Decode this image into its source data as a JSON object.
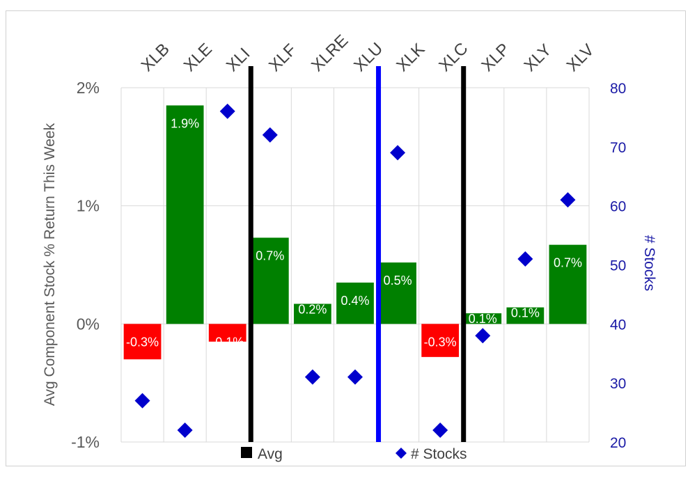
{
  "chart_data": {
    "type": "bar",
    "categories": [
      "XLB",
      "XLE",
      "XLI",
      "XLF",
      "XLRE",
      "XLU",
      "XLK",
      "XLC",
      "XLP",
      "XLY",
      "XLV"
    ],
    "series": [
      {
        "name": "Avg Component Stock % Return This Week",
        "axis": "left",
        "values": [
          -0.3,
          1.85,
          -0.15,
          0.73,
          0.17,
          0.35,
          0.52,
          -0.28,
          0.09,
          0.14,
          0.67
        ],
        "labels": [
          "-0.3%",
          "1.9%",
          "-0.1%",
          "0.7%",
          "0.2%",
          "0.4%",
          "0.5%",
          "-0.3%",
          "0.1%",
          "0.1%",
          "0.7%"
        ]
      },
      {
        "name": "# Stocks",
        "axis": "right",
        "type": "scatter",
        "values": [
          27,
          22,
          76,
          72,
          31,
          31,
          69,
          22,
          38,
          51,
          61
        ]
      }
    ],
    "reference_lines": [
      {
        "name": "Avg",
        "between": [
          "XLI",
          "XLF"
        ],
        "color": "#000000"
      },
      {
        "name": "Avg",
        "between": [
          "XLU",
          "XLK"
        ],
        "color": "#0000ff"
      },
      {
        "name": "Avg",
        "between": [
          "XLC",
          "XLP"
        ],
        "color": "#000000"
      }
    ],
    "ylabel": "Avg Component Stock % Return This Week",
    "y2label": "# Stocks",
    "ylim": [
      -1,
      2
    ],
    "y2lim": [
      20,
      80
    ],
    "yticks": [
      -1,
      0,
      1,
      2
    ],
    "ytick_labels": [
      "-1%",
      "0%",
      "1%",
      "2%"
    ],
    "y2ticks": [
      20,
      30,
      40,
      50,
      60,
      70,
      80
    ],
    "y2tick_labels": [
      "20",
      "30",
      "40",
      "50",
      "60",
      "70",
      "80"
    ],
    "legend": {
      "position": "bottom",
      "items": [
        {
          "label": "Avg",
          "marker": "square",
          "color": "#000000"
        },
        {
          "label": "# Stocks",
          "marker": "diamond",
          "color": "#0000cc"
        }
      ]
    },
    "colors": {
      "positive": "#008000",
      "negative": "#ff0000",
      "marker": "#0000cc",
      "y2_text": "#1a1aa6",
      "axis_text": "#595959",
      "grid": "#d9d9d9"
    }
  }
}
